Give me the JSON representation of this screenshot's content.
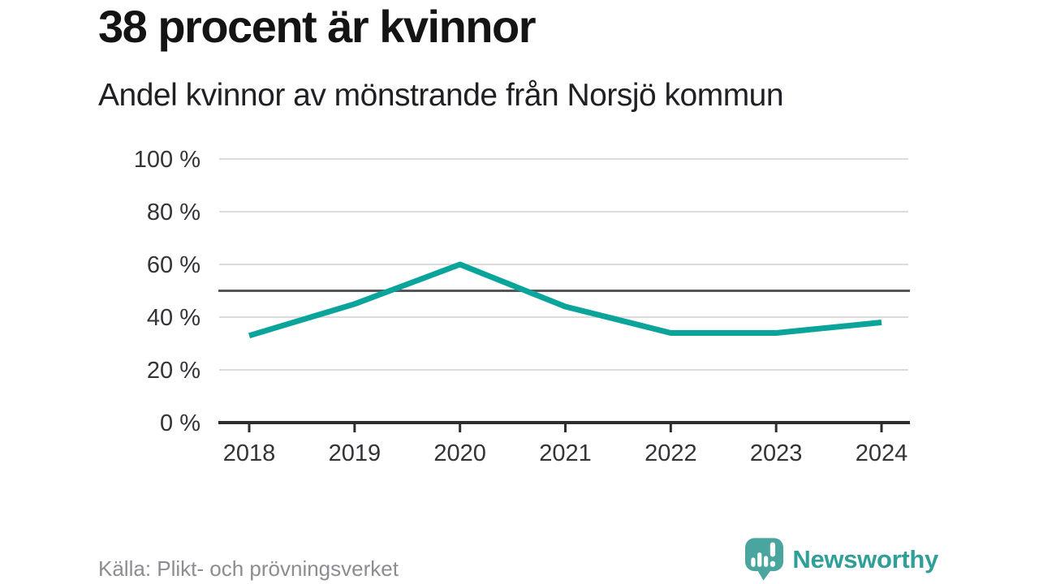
{
  "header": {
    "title": "38 procent är kvinnor",
    "subtitle": "Andel kvinnor av mönstrande från Norsjö kommun"
  },
  "footer": {
    "source": "Källa: Plikt- och prövningsverket",
    "logo_text": "Newsworthy"
  },
  "colors": {
    "background": "#ffffff",
    "line": "#0ba49b",
    "grid": "#dcdcdc",
    "reference": "#55555a",
    "axis": "#2e2e32",
    "tick_label": "#333338",
    "title": "#141414",
    "subtitle": "#202024",
    "source": "#8c8c92",
    "logo_icon": "#4aa59e",
    "logo_text": "#2f9f98"
  },
  "chart_data": {
    "type": "line",
    "title": "38 procent är kvinnor",
    "subtitle": "Andel kvinnor av mönstrande från Norsjö kommun",
    "x": [
      2018,
      2019,
      2020,
      2021,
      2022,
      2023,
      2024
    ],
    "series": [
      {
        "name": "Andel kvinnor av mönstrande",
        "values": [
          33,
          45,
          60,
          44,
          34,
          34,
          38
        ]
      }
    ],
    "ylim": [
      0,
      100
    ],
    "y_tick_values": [
      0,
      20,
      40,
      60,
      80,
      100
    ],
    "y_tick_labels": [
      "0 %",
      "20 %",
      "40 %",
      "60 %",
      "80 %",
      "100 %"
    ],
    "x_tick_labels": [
      "2018",
      "2019",
      "2020",
      "2021",
      "2022",
      "2023",
      "2024"
    ],
    "reference_line": 50,
    "grid": true,
    "legend": false,
    "xlabel": "",
    "ylabel": ""
  }
}
